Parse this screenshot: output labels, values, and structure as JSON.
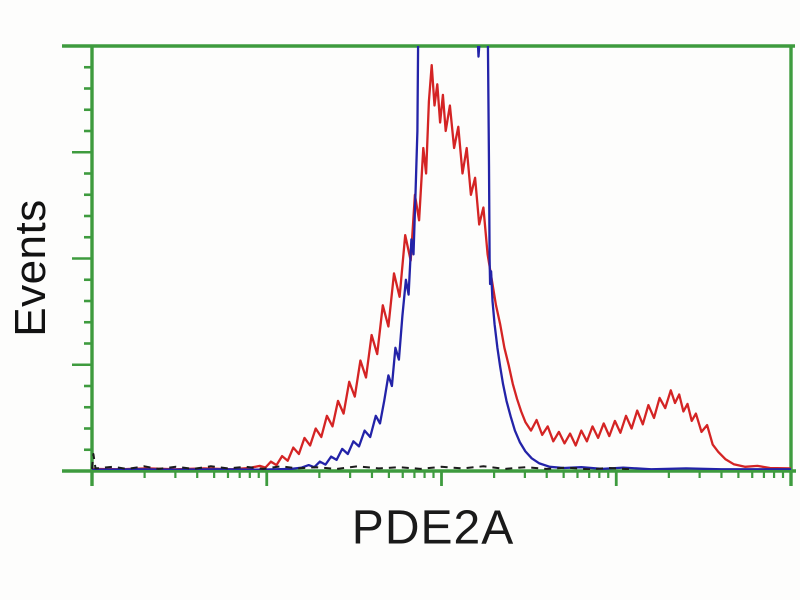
{
  "figure": {
    "background_color": "#ffffff",
    "axis_color": "#3e9b3e",
    "text_color": "#141414"
  },
  "chart_data": {
    "type": "line",
    "subtype": "flow-cytometry-histogram-overlay",
    "title": "",
    "xlabel": "PDE2A",
    "ylabel": "Events",
    "x_axis": {
      "scale": "log",
      "decades": 4,
      "minor_ticks": [
        2,
        3,
        4,
        5,
        6,
        7,
        8,
        9
      ],
      "tick_labels": [],
      "grid": false
    },
    "y_axis": {
      "scale": "linear",
      "major_divisions": 4,
      "minors_per_major": 5,
      "tick_labels": [],
      "grid": false,
      "range": [
        0,
        1
      ]
    },
    "ylim_note": "y in fraction of axis height; values > 1 are clipped at plot top",
    "series": [
      {
        "name": "red-trace",
        "color": "#d42424",
        "style": "solid",
        "points": [
          [
            0.0,
            0.005
          ],
          [
            0.04,
            0.004
          ],
          [
            0.08,
            0.006
          ],
          [
            0.12,
            0.004
          ],
          [
            0.16,
            0.006
          ],
          [
            0.2,
            0.004
          ],
          [
            0.225,
            0.007
          ],
          [
            0.24,
            0.012
          ],
          [
            0.248,
            0.008
          ],
          [
            0.256,
            0.022
          ],
          [
            0.264,
            0.014
          ],
          [
            0.272,
            0.035
          ],
          [
            0.28,
            0.024
          ],
          [
            0.288,
            0.055
          ],
          [
            0.296,
            0.04
          ],
          [
            0.304,
            0.078
          ],
          [
            0.312,
            0.06
          ],
          [
            0.32,
            0.1
          ],
          [
            0.328,
            0.08
          ],
          [
            0.336,
            0.13
          ],
          [
            0.344,
            0.105
          ],
          [
            0.352,
            0.165
          ],
          [
            0.36,
            0.135
          ],
          [
            0.368,
            0.21
          ],
          [
            0.376,
            0.175
          ],
          [
            0.384,
            0.26
          ],
          [
            0.392,
            0.22
          ],
          [
            0.4,
            0.32
          ],
          [
            0.408,
            0.275
          ],
          [
            0.416,
            0.39
          ],
          [
            0.424,
            0.34
          ],
          [
            0.432,
            0.465
          ],
          [
            0.44,
            0.41
          ],
          [
            0.448,
            0.555
          ],
          [
            0.456,
            0.495
          ],
          [
            0.462,
            0.65
          ],
          [
            0.468,
            0.59
          ],
          [
            0.474,
            0.76
          ],
          [
            0.478,
            0.7
          ],
          [
            0.482,
            0.87
          ],
          [
            0.486,
            0.955
          ],
          [
            0.49,
            0.86
          ],
          [
            0.494,
            0.91
          ],
          [
            0.498,
            0.82
          ],
          [
            0.502,
            0.885
          ],
          [
            0.506,
            0.8
          ],
          [
            0.512,
            0.86
          ],
          [
            0.518,
            0.76
          ],
          [
            0.524,
            0.81
          ],
          [
            0.53,
            0.7
          ],
          [
            0.536,
            0.76
          ],
          [
            0.542,
            0.65
          ],
          [
            0.548,
            0.69
          ],
          [
            0.554,
            0.58
          ],
          [
            0.56,
            0.62
          ],
          [
            0.566,
            0.51
          ],
          [
            0.572,
            0.45
          ],
          [
            0.578,
            0.39
          ],
          [
            0.584,
            0.345
          ],
          [
            0.59,
            0.29
          ],
          [
            0.596,
            0.25
          ],
          [
            0.602,
            0.205
          ],
          [
            0.608,
            0.17
          ],
          [
            0.614,
            0.14
          ],
          [
            0.62,
            0.115
          ],
          [
            0.628,
            0.095
          ],
          [
            0.636,
            0.12
          ],
          [
            0.644,
            0.085
          ],
          [
            0.652,
            0.105
          ],
          [
            0.66,
            0.07
          ],
          [
            0.668,
            0.092
          ],
          [
            0.676,
            0.065
          ],
          [
            0.684,
            0.088
          ],
          [
            0.692,
            0.06
          ],
          [
            0.7,
            0.095
          ],
          [
            0.708,
            0.07
          ],
          [
            0.716,
            0.105
          ],
          [
            0.724,
            0.078
          ],
          [
            0.732,
            0.112
          ],
          [
            0.74,
            0.082
          ],
          [
            0.748,
            0.118
          ],
          [
            0.756,
            0.09
          ],
          [
            0.764,
            0.13
          ],
          [
            0.772,
            0.1
          ],
          [
            0.78,
            0.142
          ],
          [
            0.788,
            0.11
          ],
          [
            0.796,
            0.155
          ],
          [
            0.804,
            0.125
          ],
          [
            0.812,
            0.172
          ],
          [
            0.82,
            0.148
          ],
          [
            0.828,
            0.19
          ],
          [
            0.834,
            0.16
          ],
          [
            0.84,
            0.18
          ],
          [
            0.846,
            0.14
          ],
          [
            0.852,
            0.158
          ],
          [
            0.858,
            0.118
          ],
          [
            0.864,
            0.135
          ],
          [
            0.872,
            0.092
          ],
          [
            0.88,
            0.108
          ],
          [
            0.888,
            0.062
          ],
          [
            0.896,
            0.045
          ],
          [
            0.906,
            0.028
          ],
          [
            0.918,
            0.016
          ],
          [
            0.934,
            0.01
          ],
          [
            0.952,
            0.012
          ],
          [
            0.97,
            0.007
          ],
          [
            1.0,
            0.006
          ]
        ]
      },
      {
        "name": "blue-trace",
        "color": "#2323a8",
        "style": "solid",
        "points": [
          [
            0.0,
            0.003
          ],
          [
            0.06,
            0.004
          ],
          [
            0.12,
            0.003
          ],
          [
            0.18,
            0.004
          ],
          [
            0.24,
            0.003
          ],
          [
            0.285,
            0.005
          ],
          [
            0.3,
            0.008
          ],
          [
            0.31,
            0.014
          ],
          [
            0.318,
            0.009
          ],
          [
            0.326,
            0.022
          ],
          [
            0.334,
            0.015
          ],
          [
            0.342,
            0.034
          ],
          [
            0.35,
            0.026
          ],
          [
            0.358,
            0.052
          ],
          [
            0.366,
            0.04
          ],
          [
            0.374,
            0.07
          ],
          [
            0.382,
            0.058
          ],
          [
            0.39,
            0.095
          ],
          [
            0.398,
            0.08
          ],
          [
            0.406,
            0.13
          ],
          [
            0.412,
            0.112
          ],
          [
            0.418,
            0.165
          ],
          [
            0.424,
            0.225
          ],
          [
            0.429,
            0.2
          ],
          [
            0.434,
            0.29
          ],
          [
            0.439,
            0.262
          ],
          [
            0.444,
            0.365
          ],
          [
            0.449,
            0.45
          ],
          [
            0.453,
            0.415
          ],
          [
            0.457,
            0.545
          ],
          [
            0.46,
            0.51
          ],
          [
            0.463,
            0.66
          ],
          [
            0.4655,
            0.8
          ],
          [
            0.467,
            1.09
          ],
          [
            0.49,
            1.09
          ],
          [
            0.515,
            1.09
          ],
          [
            0.545,
            1.09
          ],
          [
            0.55,
            1.085
          ],
          [
            0.553,
            0.975
          ],
          [
            0.556,
            1.045
          ],
          [
            0.56,
            1.09
          ],
          [
            0.566,
            1.09
          ],
          [
            0.568,
            0.72
          ],
          [
            0.5688,
            0.5
          ],
          [
            0.5695,
            0.44
          ],
          [
            0.571,
            0.47
          ],
          [
            0.573,
            0.4
          ],
          [
            0.576,
            0.345
          ],
          [
            0.58,
            0.29
          ],
          [
            0.584,
            0.245
          ],
          [
            0.588,
            0.205
          ],
          [
            0.593,
            0.165
          ],
          [
            0.599,
            0.128
          ],
          [
            0.605,
            0.095
          ],
          [
            0.612,
            0.068
          ],
          [
            0.62,
            0.046
          ],
          [
            0.629,
            0.03
          ],
          [
            0.64,
            0.018
          ],
          [
            0.655,
            0.01
          ],
          [
            0.675,
            0.007
          ],
          [
            0.7,
            0.009
          ],
          [
            0.73,
            0.005
          ],
          [
            0.76,
            0.008
          ],
          [
            0.8,
            0.004
          ],
          [
            0.85,
            0.006
          ],
          [
            0.9,
            0.004
          ],
          [
            1.0,
            0.004
          ]
        ]
      },
      {
        "name": "black-baseline-trace",
        "color": "#1c1c1c",
        "style": "dashed",
        "points": [
          [
            0.0,
            0.005
          ],
          [
            0.002,
            0.04
          ],
          [
            0.005,
            0.006
          ],
          [
            0.03,
            0.01
          ],
          [
            0.05,
            0.005
          ],
          [
            0.075,
            0.011
          ],
          [
            0.095,
            0.005
          ],
          [
            0.12,
            0.01
          ],
          [
            0.145,
            0.005
          ],
          [
            0.17,
            0.011
          ],
          [
            0.195,
            0.006
          ],
          [
            0.22,
            0.01
          ],
          [
            0.245,
            0.005
          ],
          [
            0.27,
            0.011
          ],
          [
            0.295,
            0.006
          ],
          [
            0.32,
            0.009
          ],
          [
            0.35,
            0.005
          ],
          [
            0.38,
            0.011
          ],
          [
            0.41,
            0.006
          ],
          [
            0.44,
            0.009
          ],
          [
            0.47,
            0.005
          ],
          [
            0.5,
            0.01
          ],
          [
            0.53,
            0.006
          ],
          [
            0.56,
            0.011
          ],
          [
            0.59,
            0.005
          ],
          [
            0.62,
            0.009
          ],
          [
            0.65,
            0.005
          ],
          [
            0.68,
            0.008
          ],
          [
            0.71,
            0.004
          ],
          [
            0.74,
            0.007
          ],
          [
            0.77,
            0.004
          ]
        ]
      }
    ]
  }
}
